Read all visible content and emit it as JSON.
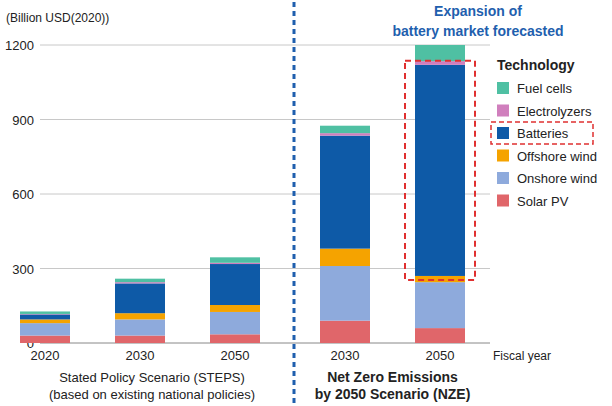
{
  "chart_data": {
    "type": "bar",
    "stacked": true,
    "grid": true,
    "legend": "right",
    "legend_title": "Technology",
    "y_label": "(Billion USD(2020))",
    "x_label": "Fiscal year",
    "ylim": [
      0,
      1200
    ],
    "yticks": [
      0,
      300,
      600,
      900,
      1200
    ],
    "categories": [
      "2020",
      "2030",
      "2050",
      "2030",
      "2050"
    ],
    "x_groups": [
      {
        "lines": [
          "Stated Policy Scenario (STEPS)",
          "(based on existing national policies)"
        ],
        "span": 3
      },
      {
        "lines": [
          "Net Zero Emissions",
          "by 2050 Scenario (NZE)"
        ],
        "span": 2
      }
    ],
    "annotation": {
      "lines": [
        "Expansion of",
        "battery market forecasted"
      ],
      "series": "Batteries"
    },
    "series": [
      {
        "name": "Solar PV",
        "color": "#e0666a",
        "values": [
          30,
          30,
          35,
          90,
          60
        ]
      },
      {
        "name": "Onshore wind",
        "color": "#8eaadc",
        "values": [
          50,
          65,
          90,
          220,
          185
        ]
      },
      {
        "name": "Offshore wind",
        "color": "#f5a300",
        "values": [
          15,
          25,
          28,
          70,
          25
        ]
      },
      {
        "name": "Batteries",
        "color": "#0e5aa7",
        "values": [
          20,
          120,
          165,
          455,
          850
        ]
      },
      {
        "name": "Electrolyzers",
        "color": "#d07fbd",
        "values": [
          2,
          5,
          5,
          10,
          15
        ]
      },
      {
        "name": "Fuel cells",
        "color": "#4fc0a3",
        "values": [
          10,
          14,
          22,
          30,
          65
        ]
      }
    ]
  }
}
